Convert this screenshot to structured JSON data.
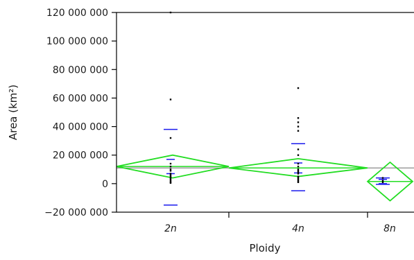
{
  "chart_data": {
    "type": "scatter",
    "title": "",
    "xlabel": "Ploidy",
    "ylabel": "Area (km²)",
    "categories": [
      "2n",
      "4n",
      "8n"
    ],
    "y_ticks": [
      -20000000,
      0,
      20000000,
      40000000,
      60000000,
      80000000,
      100000000,
      120000000
    ],
    "y_tick_labels": [
      "−20 000 000",
      "0",
      "20 000 000",
      "40 000 000",
      "60 000 000",
      "80 000 000",
      "100 000 000",
      "120 000 000"
    ],
    "ylim": [
      -20000000,
      120000000
    ],
    "grand_mean": 11000000,
    "grid": false,
    "groups": [
      {
        "category": "2n",
        "points": [
          120000000,
          59000000,
          32000000,
          14000000,
          12000000,
          10000000,
          9000000,
          7000000,
          6000000,
          5000000,
          4000000,
          3000000,
          2000000,
          1000000,
          500000
        ],
        "mean": 12000000,
        "mean_ci": [
          4000000,
          20000000
        ],
        "sd_lines": [
          38000000,
          -15000000
        ],
        "ci_lines": [
          17000000,
          7000000
        ]
      },
      {
        "category": "4n",
        "points": [
          67000000,
          46000000,
          43000000,
          40000000,
          37000000,
          24000000,
          20000000,
          14000000,
          12000000,
          10000000,
          9000000,
          8000000,
          7000000,
          5000000,
          4000000,
          3000000,
          2000000,
          1000000
        ],
        "mean": 11000000,
        "mean_ci": [
          5000000,
          17500000
        ],
        "sd_lines": [
          28000000,
          -5000000
        ],
        "ci_lines": [
          14500000,
          7500000
        ]
      },
      {
        "category": "8n",
        "points": [
          4000000,
          2000000,
          1000000
        ],
        "mean": 1500000,
        "mean_ci": [
          -12000000,
          15000000
        ],
        "sd_lines": [
          4000000,
          -500000
        ],
        "ci_lines": [
          3000000,
          0
        ]
      }
    ],
    "colors": {
      "points": "#000000",
      "diamonds": "#22dd22",
      "sd_ci_lines": "#1a1aee",
      "grand_mean_line": "#8a8a8a",
      "axes": "#000000"
    }
  }
}
